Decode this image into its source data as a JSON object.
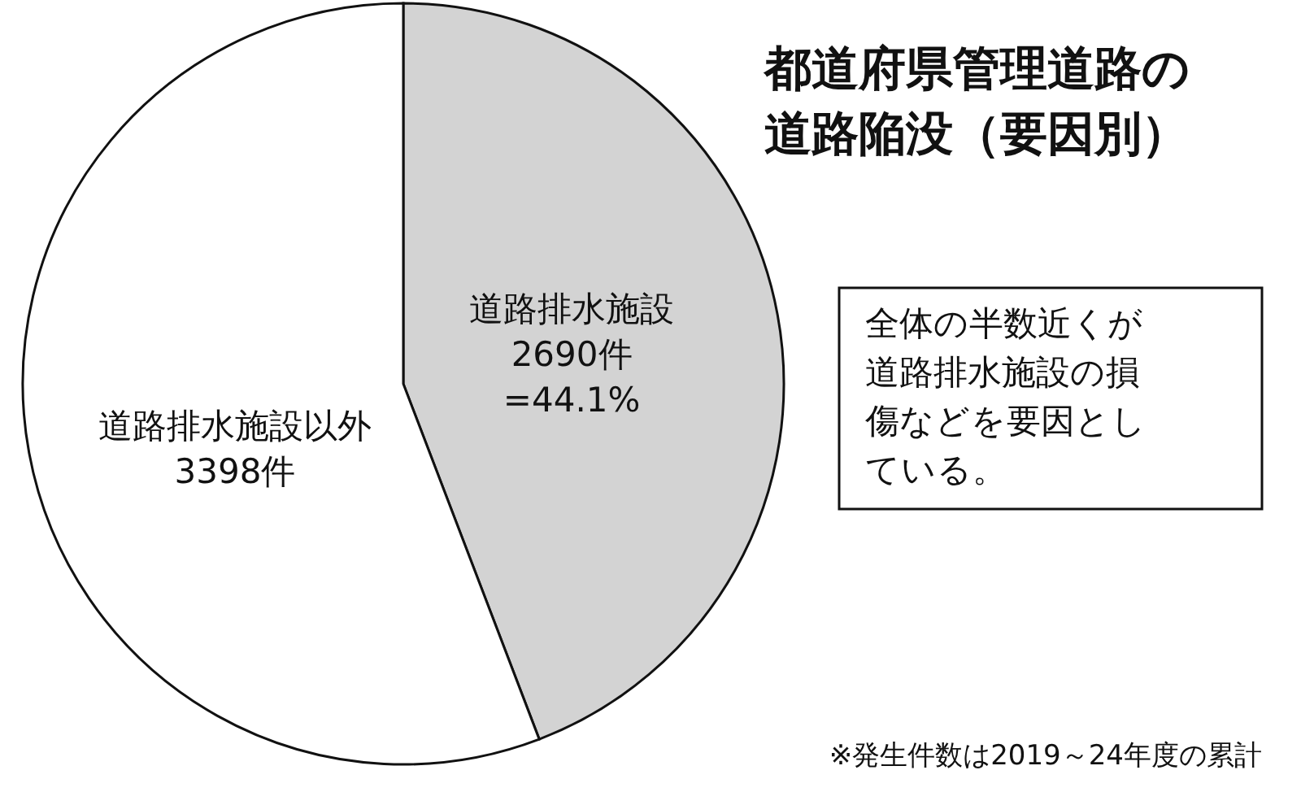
{
  "chart_data": {
    "type": "pie",
    "title": "都道府県管理道路の道路陥没（要因別）",
    "categories": [
      "道路排水施設",
      "道路排水施設以外"
    ],
    "values": [
      2690,
      3398
    ],
    "colors": [
      "#d3d3d3",
      "#ffffff"
    ],
    "value_labels": [
      "2690件\n=44.1%",
      "3398件"
    ],
    "annotations": [
      "全体の半数近くが道路排水施設の損傷などを要因としている。",
      "※発生件数は2019～24年度の累計"
    ],
    "legend": false
  }
}
